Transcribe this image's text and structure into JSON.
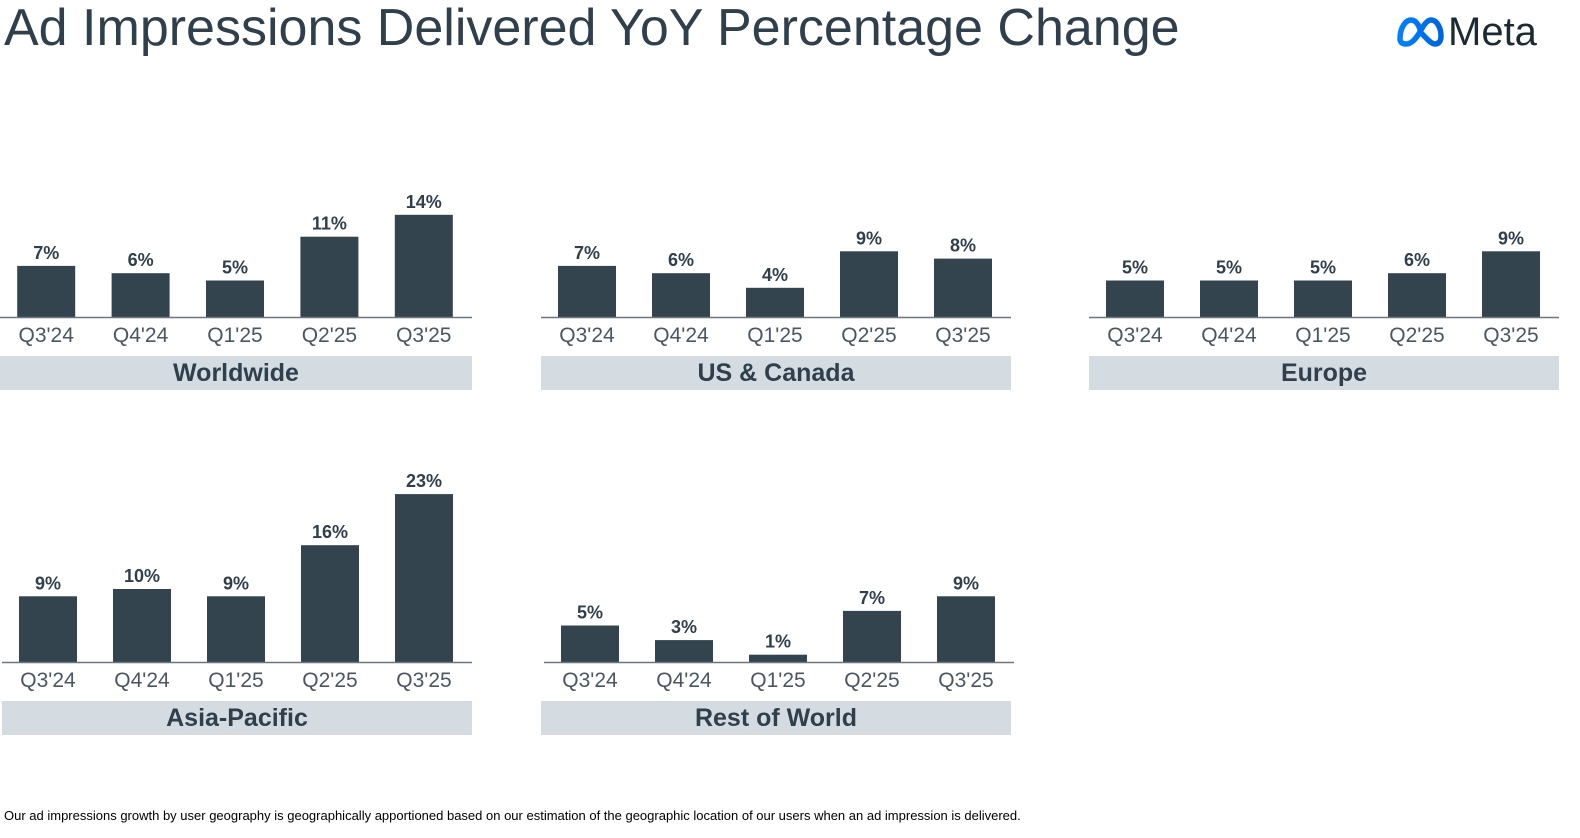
{
  "title": "Ad Impressions Delivered YoY Percentage Change",
  "logo": {
    "icon": "meta-infinity-icon",
    "text": "Meta",
    "color": "#0668e1"
  },
  "colors": {
    "bar": "#34444f",
    "caption_bg": "#d4dbe1",
    "text": "#2f3f4c",
    "axis": "#6b7780"
  },
  "footnote": "Our ad impressions growth by user geography is geographically apportioned based on our estimation of the geographic location of our users when an ad impression is delivered.",
  "chart_data": [
    {
      "type": "bar",
      "title": "Worldwide",
      "categories": [
        "Q3'24",
        "Q4'24",
        "Q1'25",
        "Q2'25",
        "Q3'25"
      ],
      "values": [
        7,
        6,
        5,
        11,
        14
      ],
      "labels": [
        "7%",
        "6%",
        "5%",
        "11%",
        "14%"
      ],
      "unit": "%",
      "ylim": [
        0,
        25
      ]
    },
    {
      "type": "bar",
      "title": "US & Canada",
      "categories": [
        "Q3'24",
        "Q4'24",
        "Q1'25",
        "Q2'25",
        "Q3'25"
      ],
      "values": [
        7,
        6,
        4,
        9,
        8
      ],
      "labels": [
        "7%",
        "6%",
        "4%",
        "9%",
        "8%"
      ],
      "unit": "%",
      "ylim": [
        0,
        25
      ]
    },
    {
      "type": "bar",
      "title": "Europe",
      "categories": [
        "Q3'24",
        "Q4'24",
        "Q1'25",
        "Q2'25",
        "Q3'25"
      ],
      "values": [
        5,
        5,
        5,
        6,
        9
      ],
      "labels": [
        "5%",
        "5%",
        "5%",
        "6%",
        "9%"
      ],
      "unit": "%",
      "ylim": [
        0,
        25
      ]
    },
    {
      "type": "bar",
      "title": "Asia-Pacific",
      "categories": [
        "Q3'24",
        "Q4'24",
        "Q1'25",
        "Q2'25",
        "Q3'25"
      ],
      "values": [
        9,
        10,
        9,
        16,
        23
      ],
      "labels": [
        "9%",
        "10%",
        "9%",
        "16%",
        "23%"
      ],
      "unit": "%",
      "ylim": [
        0,
        25
      ]
    },
    {
      "type": "bar",
      "title": "Rest of World",
      "categories": [
        "Q3'24",
        "Q4'24",
        "Q1'25",
        "Q2'25",
        "Q3'25"
      ],
      "values": [
        5,
        3,
        1,
        7,
        9
      ],
      "labels": [
        "5%",
        "3%",
        "1%",
        "7%",
        "9%"
      ],
      "unit": "%",
      "ylim": [
        0,
        25
      ]
    }
  ]
}
